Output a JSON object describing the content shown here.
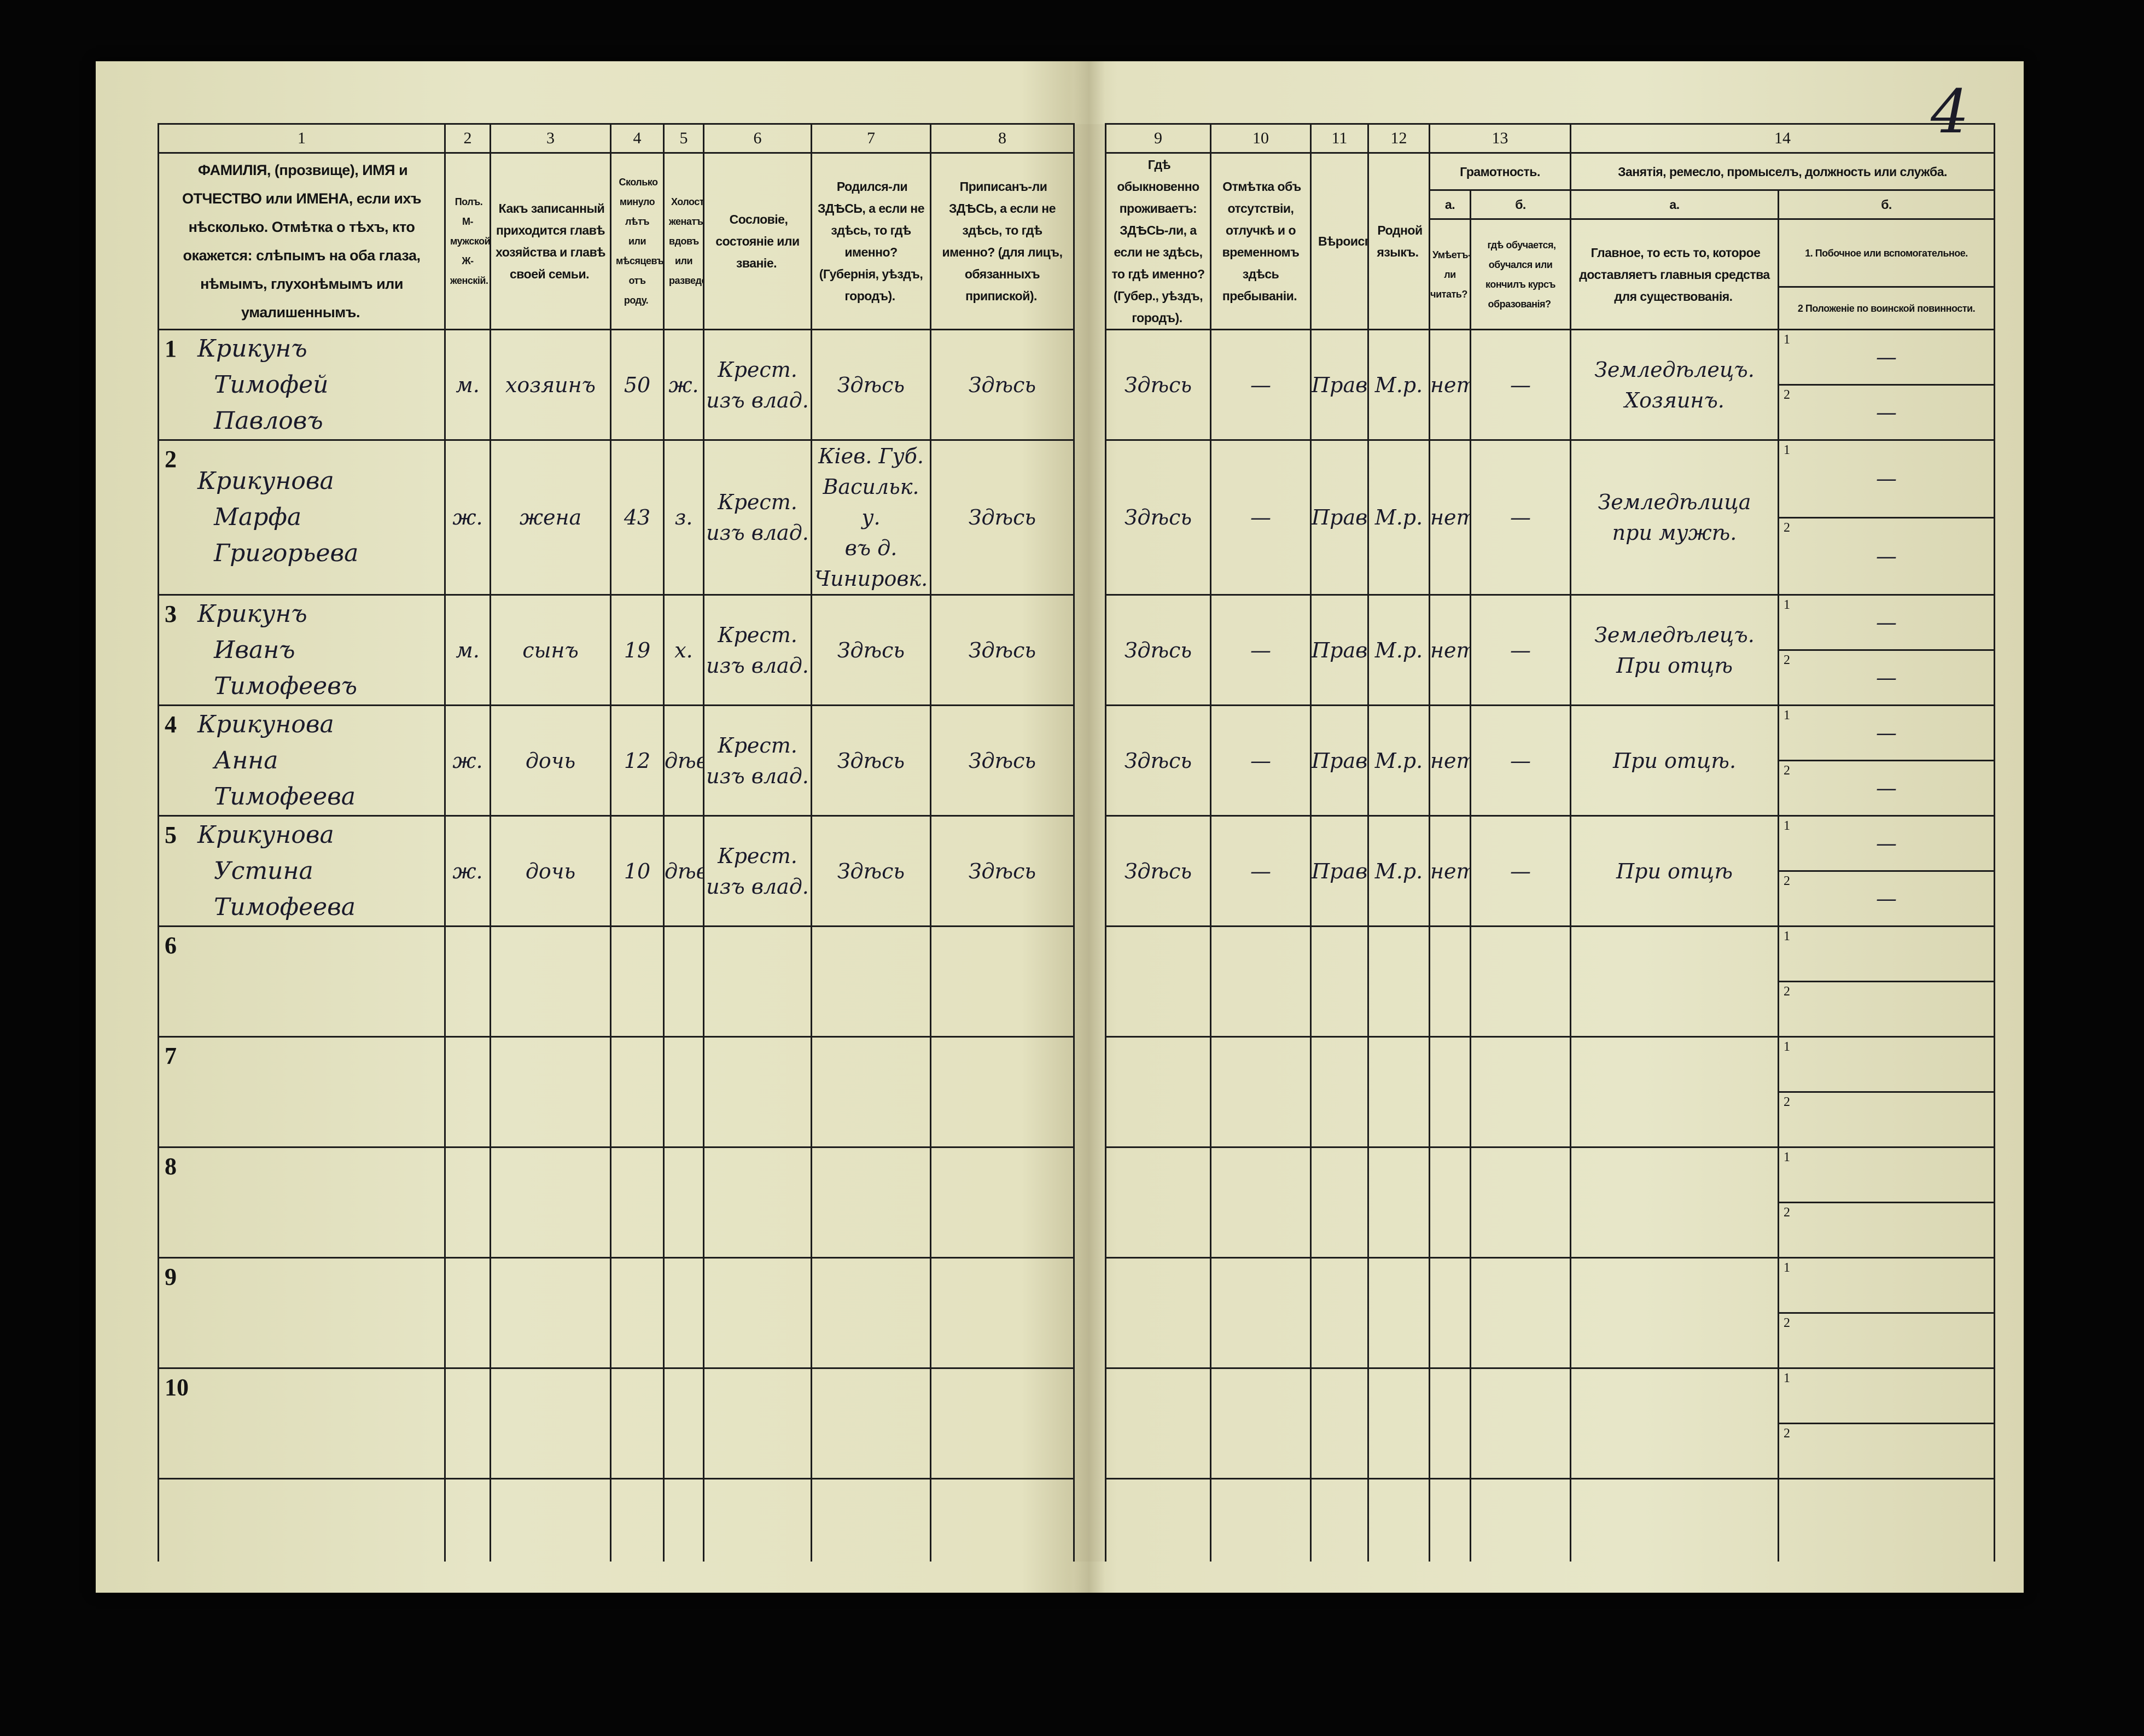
{
  "page_number": "4",
  "header": {
    "columns": [
      {
        "num": "1",
        "text": "ФАМИЛІЯ, (прозвище), ИМЯ и ОТЧЕСТВО или ИМЕНА, если ихъ нѣсколько. Отмѣтка о тѣхъ, кто окажется: слѣпымъ на оба глаза, нѣмымъ, глухонѣмымъ или умалишеннымъ."
      },
      {
        "num": "2",
        "text": "Полъ. М-мужской. Ж-женскій."
      },
      {
        "num": "3",
        "text": "Какъ записанный приходится главѣ хозяйства и главѣ своей семьи."
      },
      {
        "num": "4",
        "text": "Сколько минуло лѣтъ или мѣсяцевъ отъ роду."
      },
      {
        "num": "5",
        "text": "Холостъ, женатъ, вдовъ или разведенъ."
      },
      {
        "num": "6",
        "text": "Сословіе, состояніе или званіе."
      },
      {
        "num": "7",
        "text": "Родился-ли ЗДѢСЬ, а если не здѣсь, то гдѣ именно? (Губернія, уѣздъ, городъ)."
      },
      {
        "num": "8",
        "text": "Приписанъ-ли ЗДѢСЬ, а если не здѣсь, то гдѣ именно? (для лицъ, обязанныхъ припиской)."
      },
      {
        "num": "9",
        "text": "Гдѣ обыкновенно проживаетъ: ЗДѢСЬ-ли, а если не здѣсь, то гдѣ именно? (Губер., уѣздъ, городъ)."
      },
      {
        "num": "10",
        "text": "Отмѣтка объ отсутствіи, отлучкѣ и о временномъ здѣсь пребываніи."
      },
      {
        "num": "11",
        "text": "Вѣроисповѣданіе."
      },
      {
        "num": "12",
        "text": "Родной языкъ."
      }
    ],
    "col13": {
      "num": "13",
      "title": "Грамотность.",
      "a_label": "а.",
      "a_text": "Умѣетъ-ли читать?",
      "b_label": "б.",
      "b_text": "гдѣ обучается, обучался или кончилъ курсъ образованія?"
    },
    "col14": {
      "num": "14",
      "title": "Занятія, ремесло, промыселъ, должность или служба.",
      "a_label": "а.",
      "a_text": "Главное, то есть то, которое доставляетъ главныя средства для существованія.",
      "b_label": "б.",
      "b1_text": "1. Побочное или вспомогательное.",
      "b2_text": "2 Положеніе по воинской повинности."
    }
  },
  "sub_labels": [
    "1",
    "2"
  ],
  "rows": [
    {
      "n": "1",
      "name": [
        "Крикунъ",
        "Тимофей",
        "Павловъ"
      ],
      "sex": "м.",
      "relation": "хозяинъ",
      "age": "50",
      "marital": "ж.",
      "estate": [
        "Крест.",
        "изъ влад."
      ],
      "born": [
        "Здѣсь"
      ],
      "registered": "Здѣсь",
      "resides": "Здѣсь",
      "absence": "—",
      "religion": "Прав.",
      "language": "М.р.",
      "literate": "нет",
      "education": "—",
      "occupation_main": [
        "Земледѣлецъ.",
        "Хозяинъ."
      ],
      "occupation_side": "—",
      "military": "—"
    },
    {
      "n": "2",
      "name": [
        "Крикунова",
        "Марфа",
        "Григорьева"
      ],
      "sex": "ж.",
      "relation": "жена",
      "age": "43",
      "marital": "з.",
      "estate": [
        "Крест.",
        "изъ влад."
      ],
      "born": [
        "Кіев. Губ.",
        "Васильк. у.",
        "въ д. Чинировк."
      ],
      "registered": "Здѣсь",
      "resides": "Здѣсь",
      "absence": "—",
      "religion": "Прав.",
      "language": "М.р.",
      "literate": "нет",
      "education": "—",
      "occupation_main": [
        "Земледѣлица",
        "при мужѣ."
      ],
      "occupation_side": "—",
      "military": "—"
    },
    {
      "n": "3",
      "name": [
        "Крикунъ",
        "Иванъ",
        "Тимофеевъ"
      ],
      "sex": "м.",
      "relation": "сынъ",
      "age": "19",
      "marital": "х.",
      "estate": [
        "Крест.",
        "изъ влад."
      ],
      "born": [
        "Здѣсь"
      ],
      "registered": "Здѣсь",
      "resides": "Здѣсь",
      "absence": "—",
      "religion": "Прав.",
      "language": "М.р.",
      "literate": "нет",
      "education": "—",
      "occupation_main": [
        "Земледѣлецъ.",
        "При отцѣ"
      ],
      "occupation_side": "—",
      "military": "—"
    },
    {
      "n": "4",
      "name": [
        "Крикунова",
        "Анна",
        "Тимофеева"
      ],
      "sex": "ж.",
      "relation": "дочь",
      "age": "12",
      "marital": "дѣв.",
      "estate": [
        "Крест.",
        "изъ влад."
      ],
      "born": [
        "Здѣсь"
      ],
      "registered": "Здѣсь",
      "resides": "Здѣсь",
      "absence": "—",
      "religion": "Прав.",
      "language": "М.р.",
      "literate": "нет",
      "education": "—",
      "occupation_main": [
        "При отцѣ."
      ],
      "occupation_side": "—",
      "military": "—"
    },
    {
      "n": "5",
      "name": [
        "Крикунова",
        "Устина",
        "Тимофеева"
      ],
      "sex": "ж.",
      "relation": "дочь",
      "age": "10",
      "marital": "дѣв.",
      "estate": [
        "Крест.",
        "изъ влад."
      ],
      "born": [
        "Здѣсь"
      ],
      "registered": "Здѣсь",
      "resides": "Здѣсь",
      "absence": "—",
      "religion": "Прав.",
      "language": "М.р.",
      "literate": "нет",
      "education": "—",
      "occupation_main": [
        "При отцѣ"
      ],
      "occupation_side": "—",
      "military": "—"
    },
    {
      "n": "6"
    },
    {
      "n": "7"
    },
    {
      "n": "8"
    },
    {
      "n": "9"
    },
    {
      "n": "10"
    }
  ]
}
